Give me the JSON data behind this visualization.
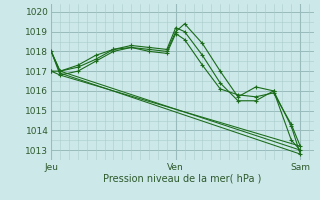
{
  "background_color": "#cce8e8",
  "grid_color_major": "#99bbbb",
  "grid_color_minor": "#aacccc",
  "line_color": "#1a6b1a",
  "ylabel_ticks": [
    1013,
    1014,
    1015,
    1016,
    1017,
    1018,
    1019,
    1020
  ],
  "ylim": [
    1012.5,
    1020.4
  ],
  "xlabel": "Pression niveau de la mer( hPa )",
  "xtick_labels": [
    "Jeu",
    "Ven",
    "Sam"
  ],
  "xtick_positions": [
    0,
    14,
    28
  ],
  "xlim": [
    0,
    29.5
  ],
  "series_with_markers": [
    {
      "x": [
        0,
        1,
        3,
        5,
        7,
        9,
        11,
        13,
        14,
        15,
        17,
        19,
        21,
        23,
        25,
        27,
        28
      ],
      "y": [
        1018.0,
        1017.0,
        1017.3,
        1017.8,
        1018.1,
        1018.2,
        1018.1,
        1018.0,
        1019.0,
        1019.4,
        1018.4,
        1017.0,
        1015.7,
        1016.2,
        1016.0,
        1014.2,
        1012.8
      ]
    },
    {
      "x": [
        0,
        1,
        3,
        5,
        7,
        9,
        11,
        13,
        14,
        15,
        17,
        19,
        21,
        23,
        25,
        27,
        28
      ],
      "y": [
        1017.0,
        1017.0,
        1017.2,
        1017.6,
        1018.1,
        1018.3,
        1018.2,
        1018.1,
        1019.2,
        1019.0,
        1017.8,
        1016.4,
        1015.5,
        1015.5,
        1016.0,
        1013.5,
        1013.0
      ]
    },
    {
      "x": [
        0,
        1,
        3,
        5,
        7,
        9,
        11,
        13,
        14,
        15,
        17,
        19,
        21,
        23,
        25,
        27,
        28
      ],
      "y": [
        1017.0,
        1016.8,
        1017.0,
        1017.5,
        1018.0,
        1018.2,
        1018.0,
        1017.9,
        1018.9,
        1018.6,
        1017.3,
        1016.1,
        1015.8,
        1015.7,
        1015.9,
        1014.3,
        1013.2
      ]
    }
  ],
  "series_trend": [
    {
      "x": [
        0,
        1,
        28
      ],
      "y": [
        1018.0,
        1017.0,
        1013.0
      ]
    },
    {
      "x": [
        0,
        1,
        28
      ],
      "y": [
        1018.0,
        1016.9,
        1012.8
      ]
    },
    {
      "x": [
        0,
        1,
        28
      ],
      "y": [
        1018.0,
        1016.8,
        1013.2
      ]
    }
  ]
}
